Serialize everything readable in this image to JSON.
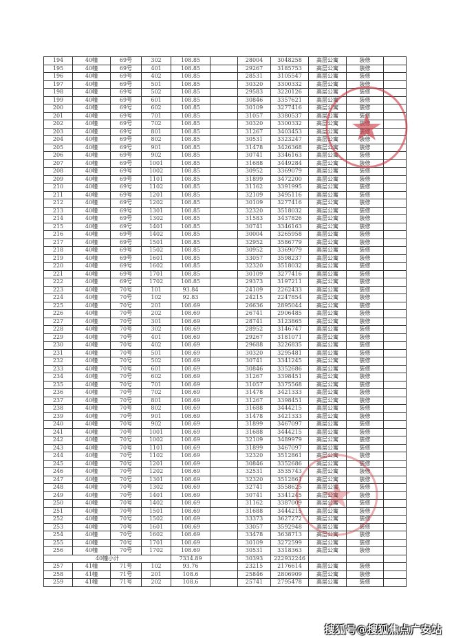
{
  "table": {
    "rows": [
      [
        "194",
        "40幢",
        "69号",
        "302",
        "108.85",
        "",
        "28004",
        "3048258",
        "高层公寓",
        "装修",
        ""
      ],
      [
        "195",
        "40幢",
        "69号",
        "401",
        "108.85",
        "",
        "29267",
        "3185753",
        "高层公寓",
        "装修",
        ""
      ],
      [
        "196",
        "40幢",
        "69号",
        "402",
        "108.85",
        "",
        "28531",
        "3105547",
        "高层公寓",
        "装修",
        ""
      ],
      [
        "197",
        "40幢",
        "69号",
        "501",
        "108.85",
        "",
        "30320",
        "3300332",
        "高层公寓",
        "装修",
        ""
      ],
      [
        "198",
        "40幢",
        "69号",
        "502",
        "108.85",
        "",
        "29583",
        "3220126",
        "高层公寓",
        "装修",
        ""
      ],
      [
        "199",
        "40幢",
        "69号",
        "601",
        "108.85",
        "",
        "30846",
        "3357621",
        "高层公寓",
        "装修",
        ""
      ],
      [
        "200",
        "40幢",
        "69号",
        "602",
        "108.85",
        "",
        "30109",
        "3277416",
        "高层公寓",
        "装修",
        ""
      ],
      [
        "201",
        "40幢",
        "69号",
        "701",
        "108.85",
        "",
        "31057",
        "3380537",
        "高层公寓",
        "装修",
        ""
      ],
      [
        "202",
        "40幢",
        "69号",
        "702",
        "108.85",
        "",
        "30320",
        "3300332",
        "高层公寓",
        "装修",
        ""
      ],
      [
        "203",
        "40幢",
        "69号",
        "801",
        "108.85",
        "",
        "31267",
        "3403453",
        "高层公寓",
        "装修",
        ""
      ],
      [
        "204",
        "40幢",
        "69号",
        "802",
        "108.85",
        "",
        "30531",
        "3323247",
        "高层公寓",
        "装修",
        ""
      ],
      [
        "205",
        "40幢",
        "69号",
        "901",
        "108.85",
        "",
        "31478",
        "3426368",
        "高层公寓",
        "装修",
        ""
      ],
      [
        "206",
        "40幢",
        "69号",
        "902",
        "108.85",
        "",
        "30741",
        "3346163",
        "高层公寓",
        "装修",
        ""
      ],
      [
        "207",
        "40幢",
        "69号",
        "1001",
        "108.85",
        "",
        "31688",
        "3449284",
        "高层公寓",
        "装修",
        ""
      ],
      [
        "208",
        "40幢",
        "69号",
        "1002",
        "108.85",
        "",
        "30952",
        "3369079",
        "高层公寓",
        "装修",
        ""
      ],
      [
        "209",
        "40幢",
        "69号",
        "1101",
        "108.85",
        "",
        "31899",
        "3472200",
        "高层公寓",
        "装修",
        ""
      ],
      [
        "210",
        "40幢",
        "69号",
        "1102",
        "108.85",
        "",
        "31162",
        "3391995",
        "高层公寓",
        "装修",
        ""
      ],
      [
        "211",
        "40幢",
        "69号",
        "1201",
        "108.85",
        "",
        "32109",
        "3495116",
        "高层公寓",
        "装修",
        ""
      ],
      [
        "212",
        "40幢",
        "69号",
        "1202",
        "108.85",
        "",
        "30109",
        "3277416",
        "高层公寓",
        "装修",
        ""
      ],
      [
        "213",
        "40幢",
        "69号",
        "1301",
        "108.85",
        "",
        "32320",
        "3518032",
        "高层公寓",
        "装修",
        ""
      ],
      [
        "214",
        "40幢",
        "69号",
        "1302",
        "108.85",
        "",
        "31583",
        "3437826",
        "高层公寓",
        "装修",
        ""
      ],
      [
        "215",
        "40幢",
        "69号",
        "1401",
        "108.85",
        "",
        "30741",
        "3346163",
        "高层公寓",
        "装修",
        ""
      ],
      [
        "216",
        "40幢",
        "69号",
        "1402",
        "108.85",
        "",
        "30004",
        "3265958",
        "高层公寓",
        "装修",
        ""
      ],
      [
        "217",
        "40幢",
        "69号",
        "1501",
        "108.85",
        "",
        "32952",
        "3586779",
        "高层公寓",
        "装修",
        ""
      ],
      [
        "218",
        "40幢",
        "69号",
        "1502",
        "108.85",
        "",
        "30952",
        "3369079",
        "高层公寓",
        "装修",
        ""
      ],
      [
        "219",
        "40幢",
        "69号",
        "1601",
        "108.85",
        "",
        "33057",
        "3598237",
        "高层公寓",
        "装修",
        ""
      ],
      [
        "220",
        "40幢",
        "69号",
        "1602",
        "108.85",
        "",
        "32320",
        "3518032",
        "高层公寓",
        "装修",
        ""
      ],
      [
        "221",
        "40幢",
        "69号",
        "1701",
        "108.85",
        "",
        "30109",
        "3277416",
        "高层公寓",
        "装修",
        ""
      ],
      [
        "222",
        "40幢",
        "69号",
        "1702",
        "108.85",
        "",
        "29373",
        "3197211",
        "高层公寓",
        "装修",
        ""
      ],
      [
        "223",
        "40幢",
        "70号",
        "101",
        "93.84",
        "",
        "24109",
        "2262433",
        "高层公寓",
        "装修",
        ""
      ],
      [
        "224",
        "40幢",
        "70号",
        "102",
        "92.83",
        "",
        "24215",
        "2247854",
        "高层公寓",
        "装修",
        ""
      ],
      [
        "225",
        "40幢",
        "70号",
        "201",
        "108.69",
        "",
        "26636",
        "2895044",
        "高层公寓",
        "装修",
        ""
      ],
      [
        "226",
        "40幢",
        "70号",
        "202",
        "108.69",
        "",
        "26741",
        "2906485",
        "高层公寓",
        "装修",
        ""
      ],
      [
        "227",
        "40幢",
        "70号",
        "301",
        "108.69",
        "",
        "28741",
        "3123865",
        "高层公寓",
        "装修",
        ""
      ],
      [
        "228",
        "40幢",
        "70号",
        "302",
        "108.69",
        "",
        "28952",
        "3146747",
        "高层公寓",
        "装修",
        ""
      ],
      [
        "229",
        "40幢",
        "70号",
        "401",
        "108.69",
        "",
        "29267",
        "3181071",
        "高层公寓",
        "装修",
        ""
      ],
      [
        "230",
        "40幢",
        "70号",
        "402",
        "108.69",
        "",
        "29688",
        "3226835",
        "高层公寓",
        "装修",
        ""
      ],
      [
        "231",
        "40幢",
        "70号",
        "501",
        "108.69",
        "",
        "30320",
        "3295481",
        "高层公寓",
        "装修",
        ""
      ],
      [
        "232",
        "40幢",
        "70号",
        "502",
        "108.69",
        "",
        "30741",
        "3341245",
        "高层公寓",
        "装修",
        ""
      ],
      [
        "233",
        "40幢",
        "70号",
        "601",
        "108.69",
        "",
        "30846",
        "3352686",
        "高层公寓",
        "装修",
        ""
      ],
      [
        "234",
        "40幢",
        "70号",
        "602",
        "108.69",
        "",
        "31267",
        "3398451",
        "高层公寓",
        "装修",
        ""
      ],
      [
        "235",
        "40幢",
        "70号",
        "701",
        "108.69",
        "",
        "31057",
        "3375568",
        "高层公寓",
        "装修",
        ""
      ],
      [
        "236",
        "40幢",
        "70号",
        "702",
        "108.69",
        "",
        "31478",
        "3421333",
        "高层公寓",
        "装修",
        ""
      ],
      [
        "237",
        "40幢",
        "70号",
        "801",
        "108.69",
        "",
        "31267",
        "3398451",
        "高层公寓",
        "装修",
        ""
      ],
      [
        "238",
        "40幢",
        "70号",
        "802",
        "108.69",
        "",
        "31688",
        "3444215",
        "高层公寓",
        "装修",
        ""
      ],
      [
        "239",
        "40幢",
        "70号",
        "901",
        "108.69",
        "",
        "31478",
        "3421333",
        "高层公寓",
        "装修",
        ""
      ],
      [
        "240",
        "40幢",
        "70号",
        "902",
        "108.69",
        "",
        "31899",
        "3467097",
        "高层公寓",
        "装修",
        ""
      ],
      [
        "241",
        "40幢",
        "70号",
        "1001",
        "108.69",
        "",
        "31688",
        "3444215",
        "高层公寓",
        "装修",
        ""
      ],
      [
        "242",
        "40幢",
        "70号",
        "1002",
        "108.69",
        "",
        "32109",
        "3489979",
        "高层公寓",
        "装修",
        ""
      ],
      [
        "243",
        "40幢",
        "70号",
        "1101",
        "108.69",
        "",
        "31899",
        "3467097",
        "高层公寓",
        "装修",
        ""
      ],
      [
        "244",
        "40幢",
        "70号",
        "1102",
        "108.69",
        "",
        "32320",
        "3512861",
        "高层公寓",
        "装修",
        ""
      ],
      [
        "245",
        "40幢",
        "70号",
        "1201",
        "108.69",
        "",
        "30846",
        "3352686",
        "高层公寓",
        "装修",
        ""
      ],
      [
        "246",
        "40幢",
        "70号",
        "1202",
        "108.69",
        "",
        "32531",
        "3535743",
        "高层公寓",
        "装修",
        ""
      ],
      [
        "247",
        "40幢",
        "70号",
        "1301",
        "108.69",
        "",
        "32320",
        "3512861",
        "高层公寓",
        "装修",
        ""
      ],
      [
        "248",
        "40幢",
        "70号",
        "1302",
        "108.69",
        "",
        "32741",
        "3558625",
        "高层公寓",
        "装修",
        ""
      ],
      [
        "249",
        "40幢",
        "70号",
        "1401",
        "108.69",
        "",
        "30741",
        "3341245",
        "高层公寓",
        "装修",
        ""
      ],
      [
        "250",
        "40幢",
        "70号",
        "1402",
        "108.69",
        "",
        "31162",
        "3387009",
        "高层公寓",
        "装修",
        ""
      ],
      [
        "251",
        "40幢",
        "70号",
        "1501",
        "108.69",
        "",
        "31688",
        "3444215",
        "高层公寓",
        "装修",
        ""
      ],
      [
        "252",
        "40幢",
        "70号",
        "1502",
        "108.69",
        "",
        "33373",
        "3627272",
        "高层公寓",
        "装修",
        ""
      ],
      [
        "253",
        "40幢",
        "70号",
        "1601",
        "108.69",
        "",
        "33057",
        "3592948",
        "高层公寓",
        "装修",
        ""
      ],
      [
        "254",
        "40幢",
        "70号",
        "1602",
        "108.69",
        "",
        "33478",
        "3638713",
        "高层公寓",
        "装修",
        ""
      ],
      [
        "255",
        "40幢",
        "70号",
        "1701",
        "108.69",
        "",
        "30109",
        "3272599",
        "高层公寓",
        "装修",
        ""
      ],
      [
        "256",
        "40幢",
        "70号",
        "1702",
        "108.69",
        "",
        "30531",
        "3318363",
        "高层公寓",
        "装修",
        ""
      ]
    ],
    "subtotal": {
      "label": "40幢小计",
      "area": "7334.89",
      "unit_price": "30393",
      "total": "222932246"
    },
    "rows_after": [
      [
        "257",
        "41幢",
        "71号",
        "102",
        "93.76",
        "",
        "23215",
        "2176614",
        "高层公寓",
        "装修",
        ""
      ],
      [
        "258",
        "41幢",
        "71号",
        "201",
        "108.6",
        "",
        "25846",
        "2806909",
        "高层公寓",
        "装修",
        ""
      ],
      [
        "259",
        "41幢",
        "71号",
        "202",
        "108.6",
        "",
        "25741",
        "2795478",
        "高层公寓",
        "装修",
        ""
      ]
    ]
  },
  "watermark": "搜狐号@搜狐焦点广安站",
  "stamp_color": "#c8323c"
}
